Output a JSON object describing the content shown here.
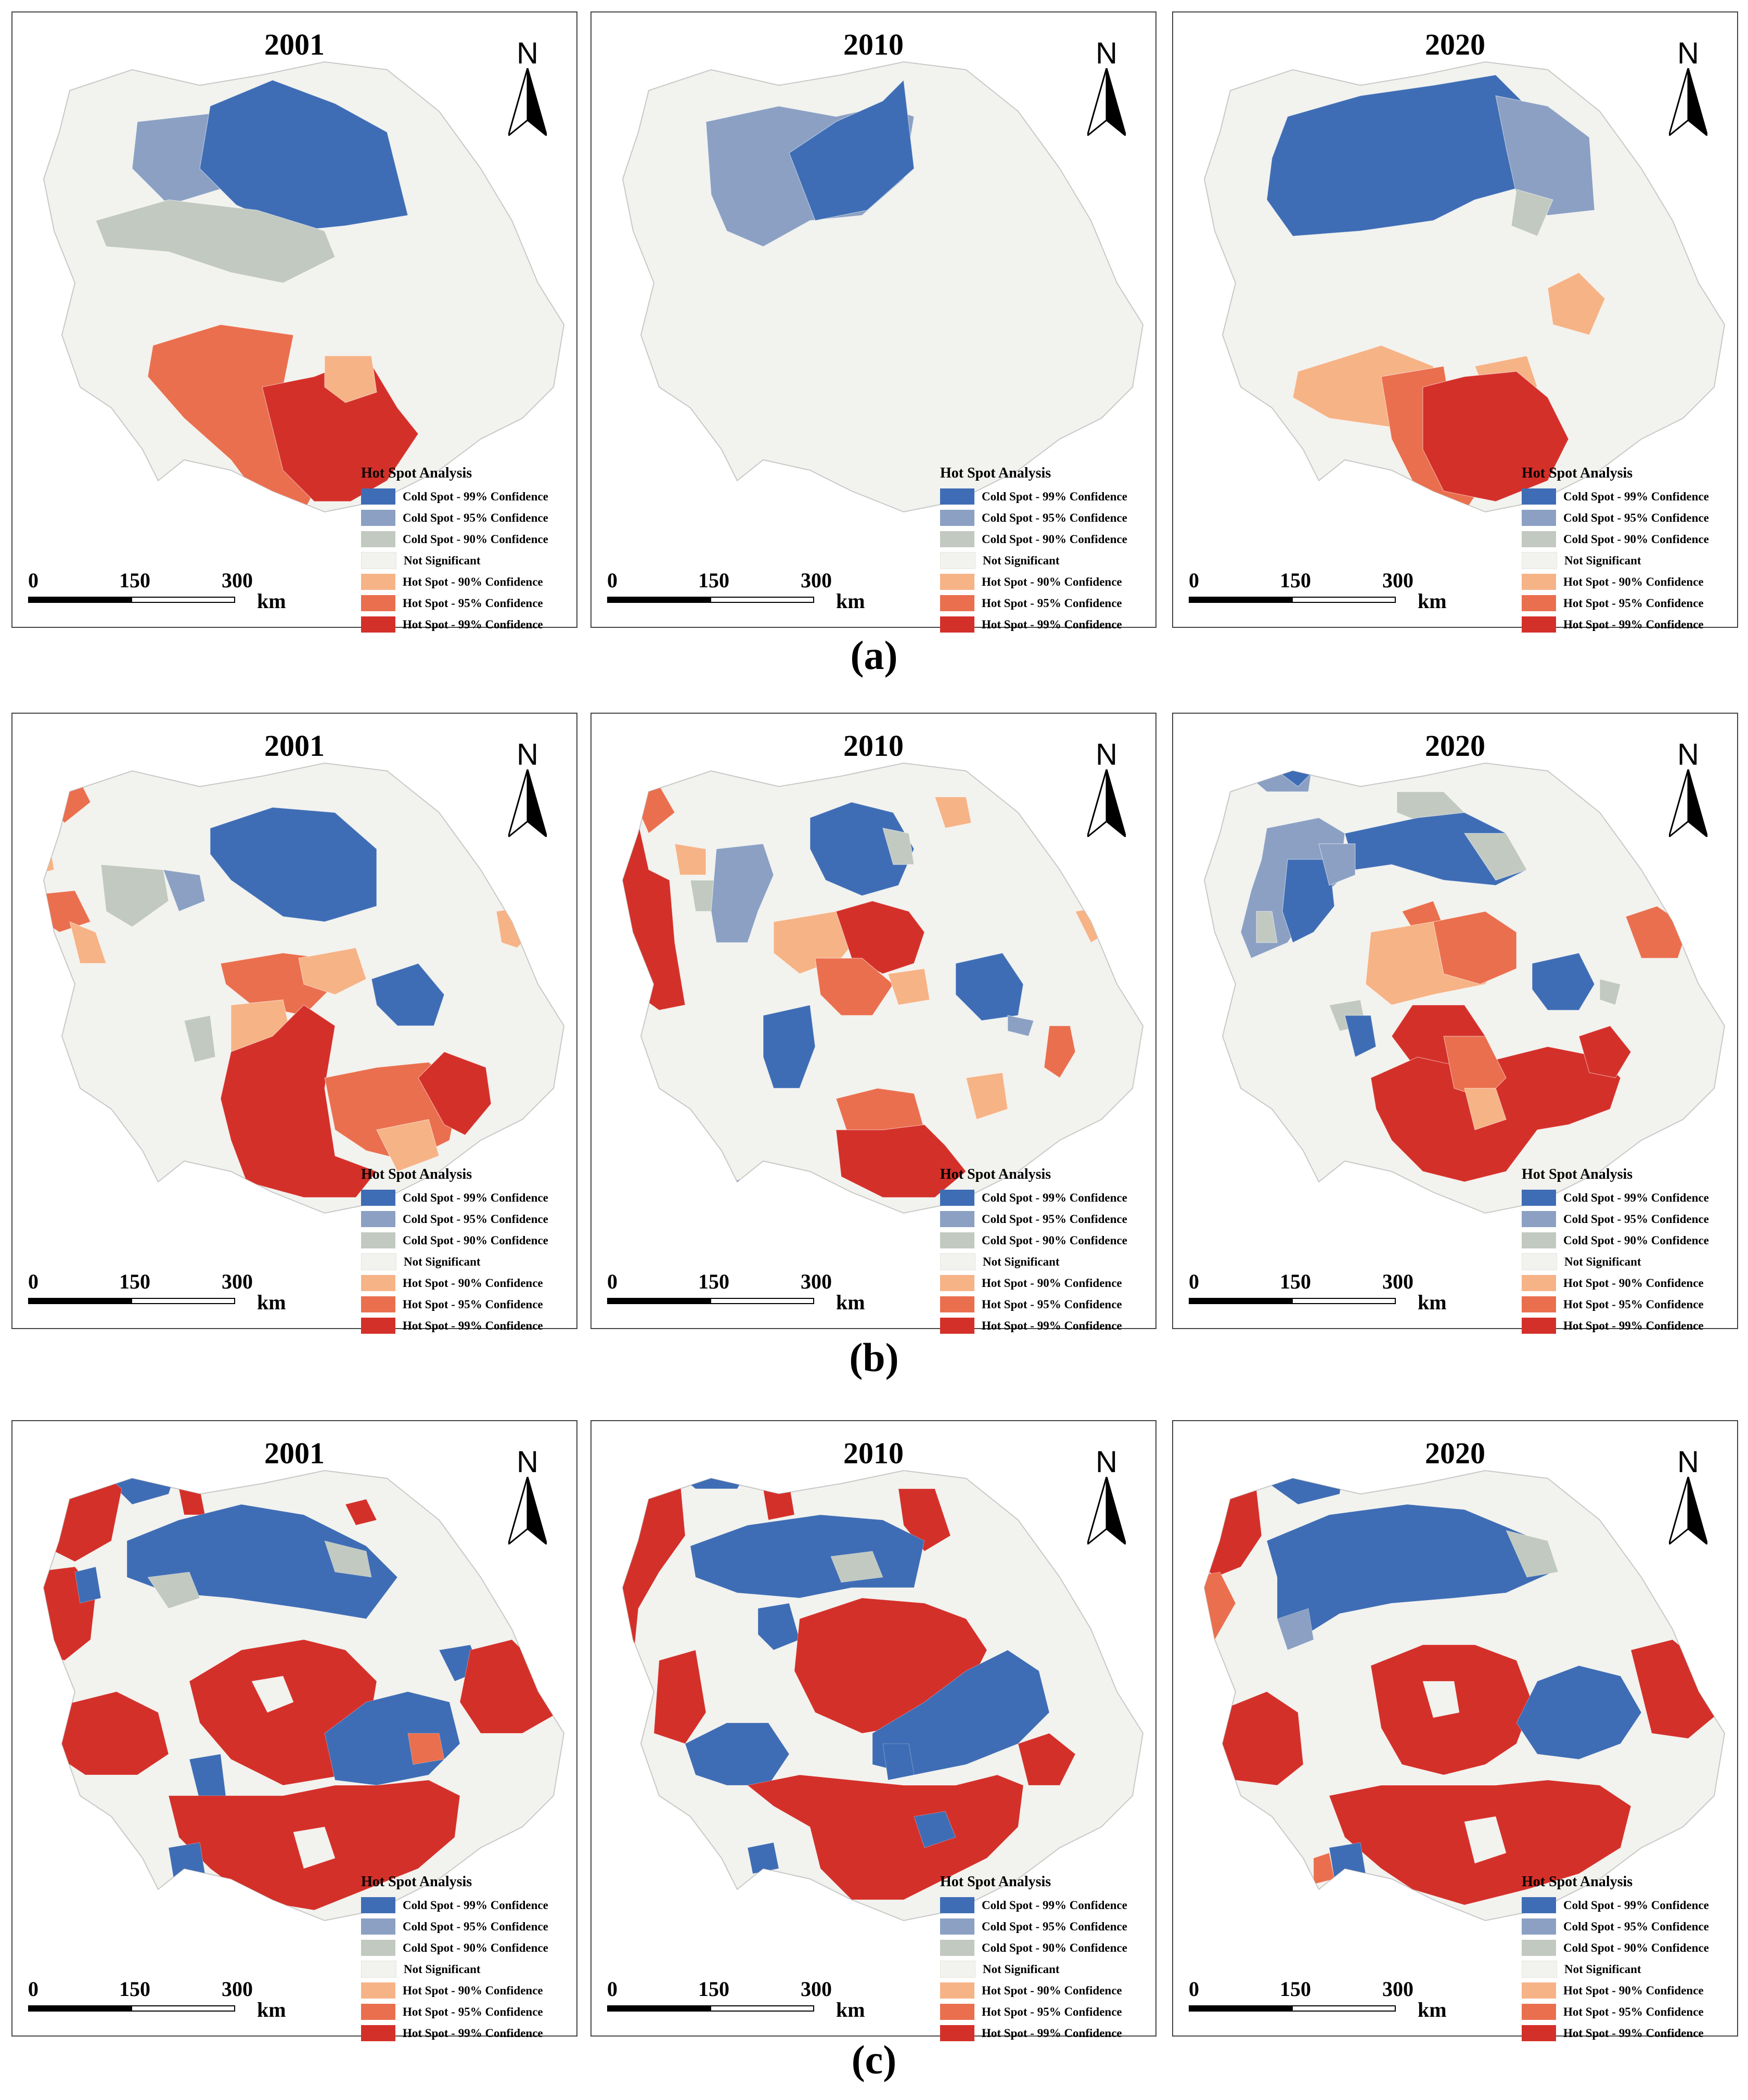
{
  "figure": {
    "captions": [
      "(a)",
      "(b)",
      "(c)"
    ],
    "north_label": "N",
    "scale_labels": [
      "0",
      "150",
      "300"
    ],
    "scale_unit": "km",
    "legend_title": "Hot Spot Analysis",
    "legend_items": [
      {
        "label": "Cold Spot - 99% Confidence",
        "color": "#3f6db5"
      },
      {
        "label": "Cold Spot - 95% Confidence",
        "color": "#8ba0c3"
      },
      {
        "label": "Cold Spot - 90% Confidence",
        "color": "#c2c9c0"
      },
      {
        "label": "Not Significant",
        "color": "#f2f2ee"
      },
      {
        "label": "Hot Spot - 90% Confidence",
        "color": "#f6b386"
      },
      {
        "label": "Hot Spot - 95% Confidence",
        "color": "#ea6f4e"
      },
      {
        "label": "Hot Spot - 99% Confidence",
        "color": "#d4302a"
      }
    ],
    "rows": [
      {
        "caption": "(a)",
        "panels": [
          {
            "year": "2001"
          },
          {
            "year": "2010"
          },
          {
            "year": "2020"
          }
        ]
      },
      {
        "caption": "(b)",
        "panels": [
          {
            "year": "2001"
          },
          {
            "year": "2010"
          },
          {
            "year": "2020"
          }
        ]
      },
      {
        "caption": "(c)",
        "panels": [
          {
            "year": "2001"
          },
          {
            "year": "2010"
          },
          {
            "year": "2020"
          }
        ]
      }
    ]
  }
}
